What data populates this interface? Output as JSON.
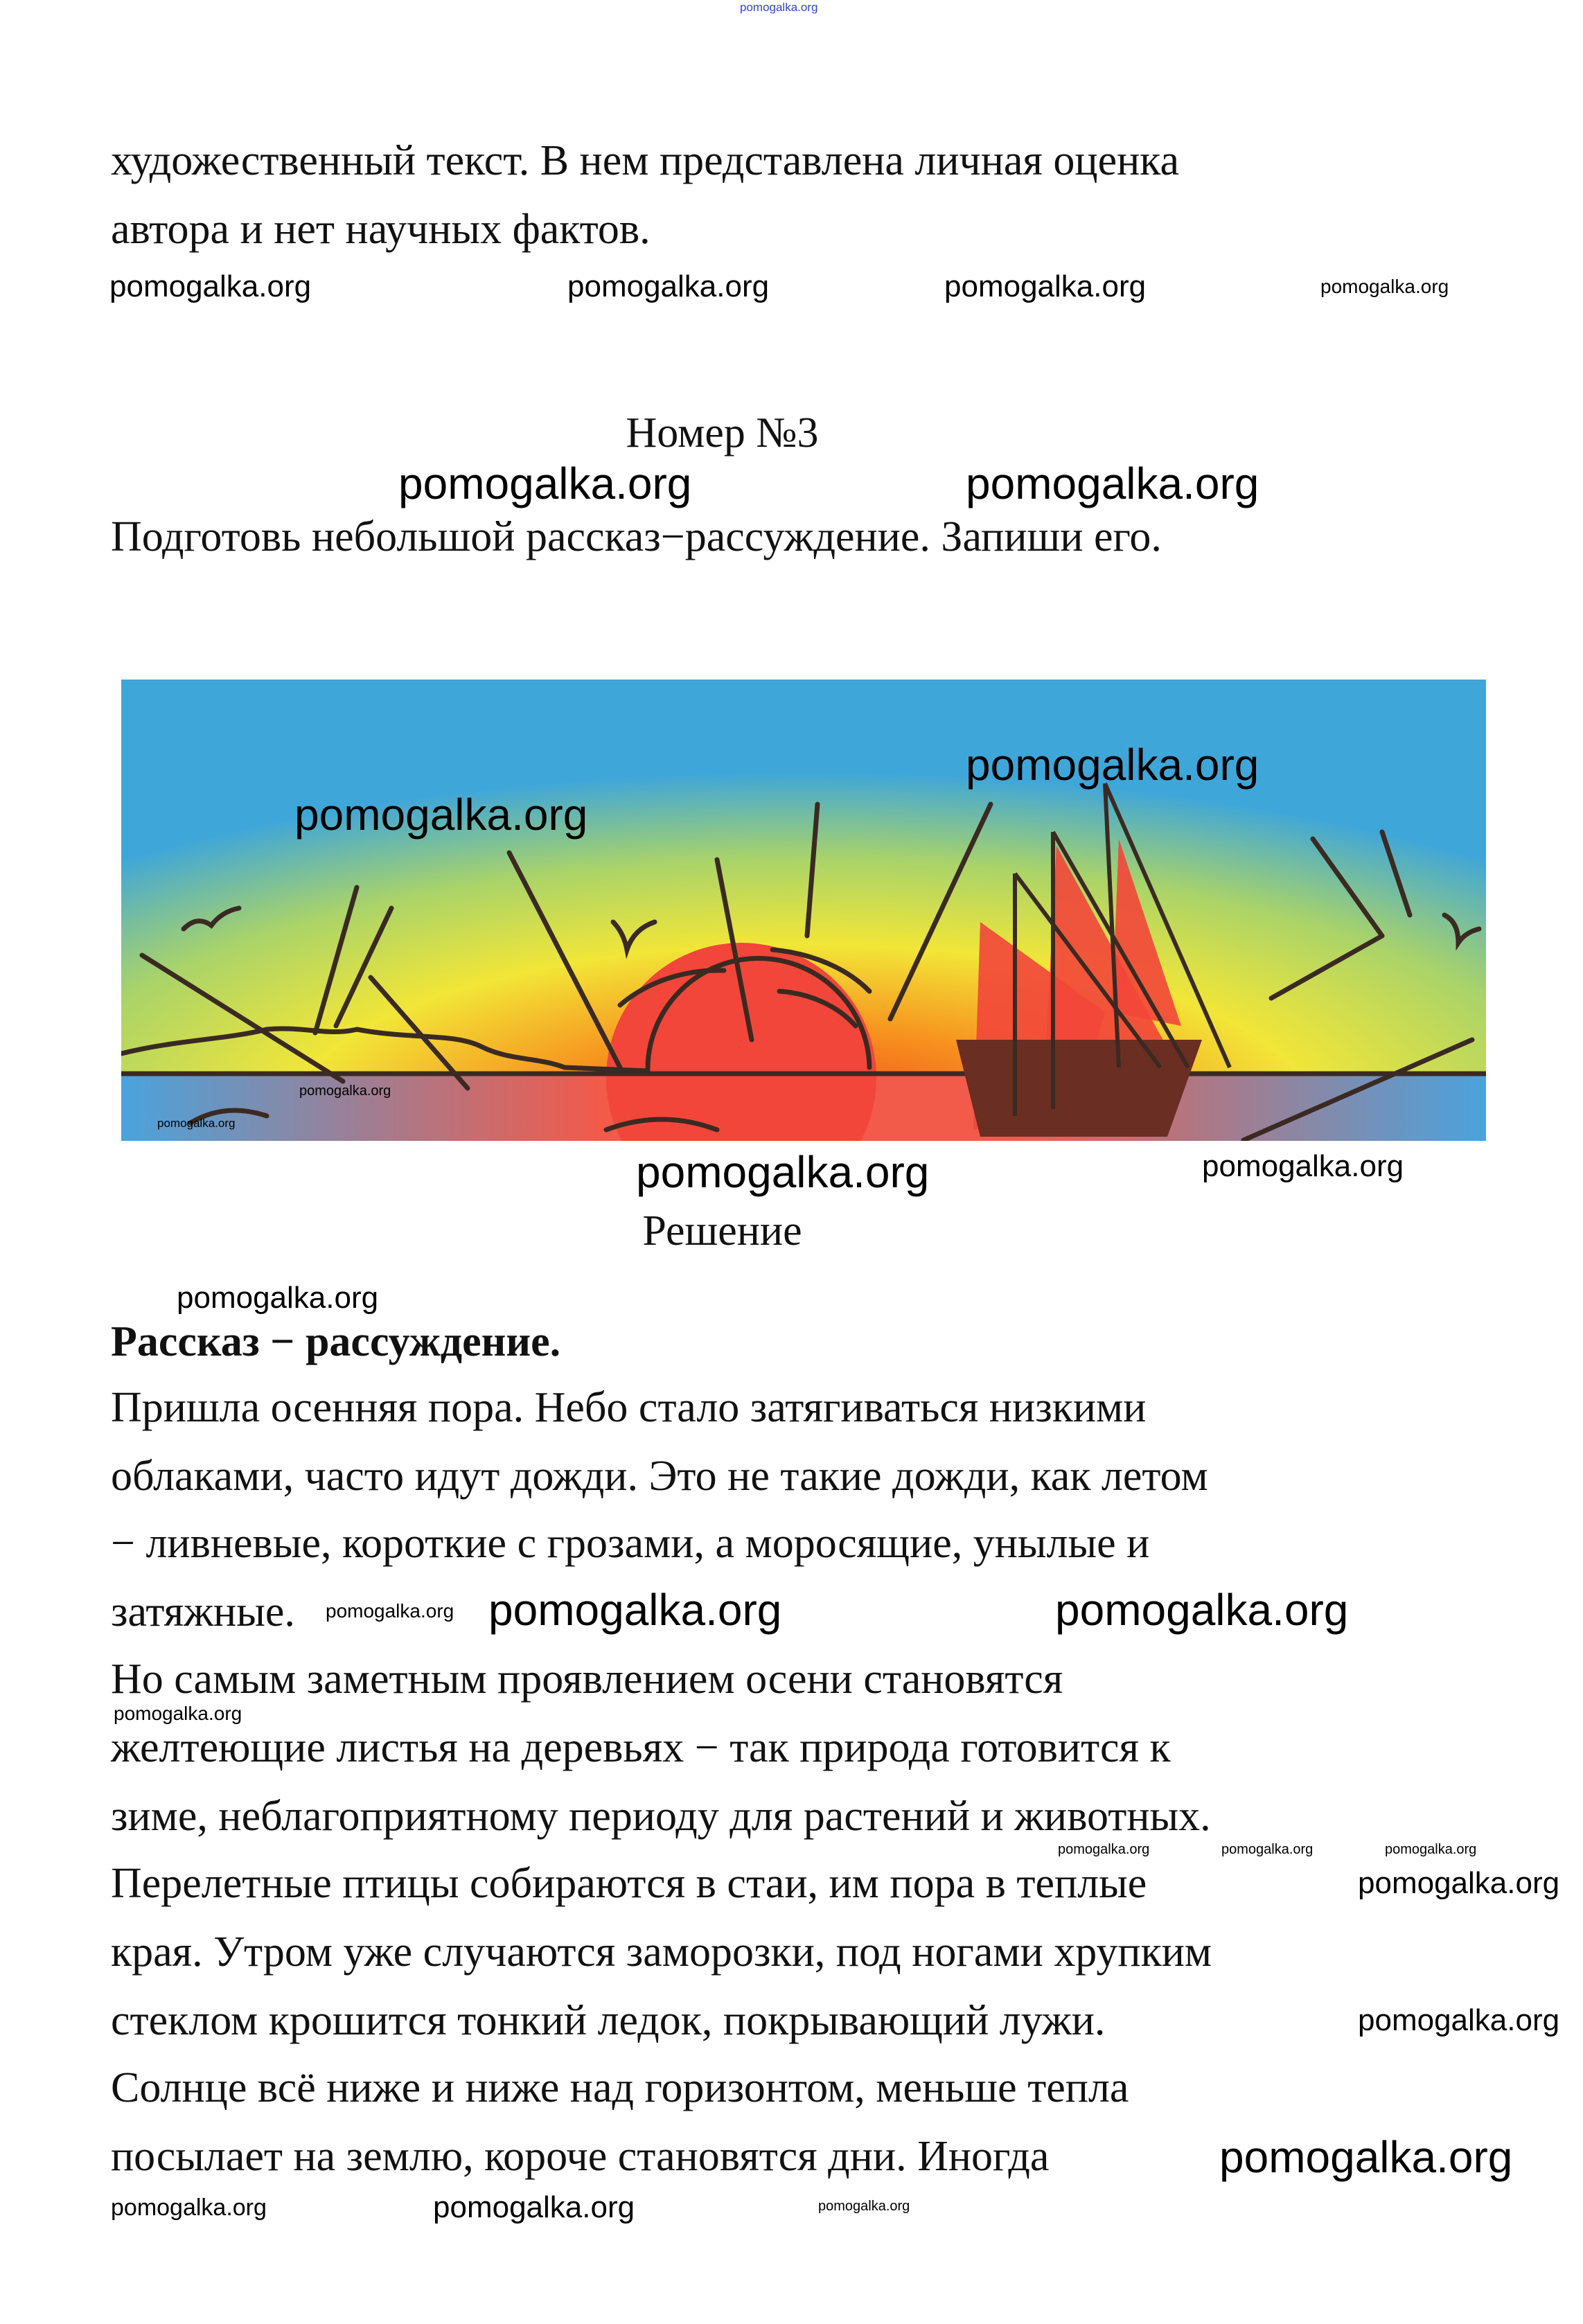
{
  "header_watermark": "pomogalka.org",
  "intro": {
    "line1": "художественный текст. В нем представлена личная оценка",
    "line2": "автора и нет научных фактов."
  },
  "task": {
    "title": "Номер №3",
    "prompt": "Подготовь небольшой рассказ−рассуждение. Запиши его."
  },
  "illustration": {
    "colors": {
      "sky_top": "#3fa6d9",
      "sky_mid": "#f2e637",
      "glow": "#f7901e",
      "sun": "#f2463a",
      "ink": "#3a2a22"
    }
  },
  "solution": {
    "title": "Решение",
    "heading": "Рассказ − рассуждение.",
    "lines": [
      "Пришла осенняя пора. Небо стало затягиваться низкими",
      "облаками, часто идут дожди. Это не такие дожди, как летом",
      "− ливневые, короткие с грозами, а моросящие, унылые и",
      "затяжные.",
      "Но самым заметным проявлением осени становятся",
      "желтеющие листья на деревьях − так природа готовится к",
      "зиме, неблагоприятному периоду для растений и животных.",
      "Перелетные птицы собираются в стаи, им пора в теплые",
      "края. Утром уже случаются заморозки, под ногами хрупким",
      "стеклом крошится тонкий ледок, покрывающий лужи.",
      "Солнце всё ниже и ниже над горизонтом, меньше тепла",
      "посылает на землю, короче становятся дни. Иногда"
    ]
  },
  "watermarks": [
    "pomogalka.org",
    "pomogalka.org",
    "pomogalka.org",
    "pomogalka.org",
    "pomogalka.org",
    "pomogalka.org",
    "pomogalka.org",
    "pomogalka.org",
    "pomogalka.org",
    "pomogalka.org",
    "pomogalka.org",
    "pomogalka.org",
    "pomogalka.org",
    "pomogalka.org",
    "pomogalka.org",
    "pomogalka.org",
    "pomogalka.org",
    "pomogalka.org",
    "pomogalka.org",
    "pomogalka.org",
    "pomogalka.org",
    "pomogalka.org",
    "pomogalka.org",
    "pomogalka.org",
    "pomogalka.org",
    "pomogalka.org"
  ]
}
